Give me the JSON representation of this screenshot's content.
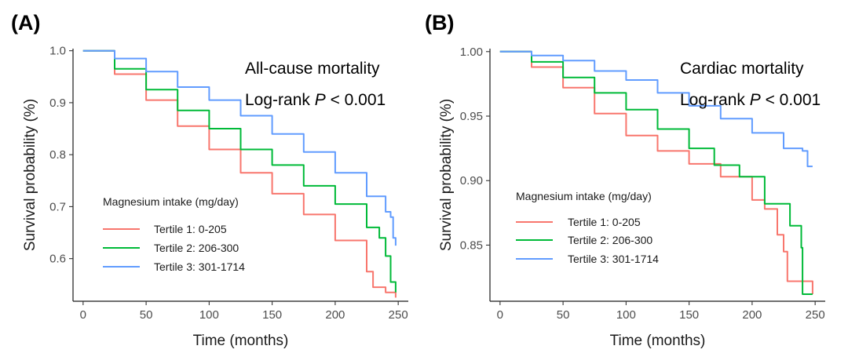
{
  "chart_data": [
    {
      "panel_label": "(A)",
      "type": "line",
      "title": "",
      "xlabel": "Time (months)",
      "ylabel": "Survival probability (%)",
      "xlim": [
        0,
        250
      ],
      "ylim": [
        0.52,
        1.0
      ],
      "xticks": [
        0,
        50,
        100,
        150,
        200,
        250
      ],
      "yticks": [
        "0.6",
        "0.7",
        "0.8",
        "0.9",
        "1.0"
      ],
      "annotation_line1": "All-cause mortality",
      "annotation_line2_prefix": "Log-rank ",
      "annotation_line2_p": "P",
      "annotation_line2_suffix": " < 0.001",
      "legend_title": "Magnesium intake (mg/day)",
      "grid": false,
      "series": [
        {
          "name": "Tertile 1: 0-205",
          "color": "#F8766D",
          "x": [
            0,
            25,
            50,
            75,
            100,
            125,
            150,
            175,
            200,
            225,
            230,
            240,
            248
          ],
          "y": [
            1.0,
            0.955,
            0.905,
            0.855,
            0.81,
            0.765,
            0.725,
            0.685,
            0.635,
            0.575,
            0.545,
            0.535,
            0.525
          ]
        },
        {
          "name": "Tertile 2:  206-300",
          "color": "#00BA38",
          "x": [
            0,
            25,
            50,
            75,
            100,
            125,
            150,
            175,
            200,
            225,
            235,
            240,
            244,
            248
          ],
          "y": [
            1.0,
            0.965,
            0.925,
            0.885,
            0.85,
            0.81,
            0.78,
            0.74,
            0.705,
            0.66,
            0.64,
            0.605,
            0.555,
            0.535
          ]
        },
        {
          "name": "Tertile 3:  301-1714",
          "color": "#619CFF",
          "x": [
            0,
            25,
            50,
            75,
            100,
            125,
            150,
            175,
            200,
            225,
            240,
            244,
            246,
            248
          ],
          "y": [
            1.0,
            0.985,
            0.96,
            0.93,
            0.905,
            0.875,
            0.84,
            0.805,
            0.765,
            0.72,
            0.69,
            0.68,
            0.64,
            0.625
          ]
        }
      ]
    },
    {
      "panel_label": "(B)",
      "type": "line",
      "title": "",
      "xlabel": "Time (months)",
      "ylabel": "Survival probability (%)",
      "xlim": [
        0,
        250
      ],
      "ylim": [
        0.81,
        1.0
      ],
      "xticks": [
        0,
        50,
        100,
        150,
        200,
        250
      ],
      "yticks": [
        "0.85",
        "0.90",
        "0.95",
        "1.00"
      ],
      "annotation_line1": "Cardiac mortality",
      "annotation_line2_prefix": "Log-rank ",
      "annotation_line2_p": "P",
      "annotation_line2_suffix": " < 0.001",
      "legend_title": "Magnesium intake (mg/day)",
      "grid": false,
      "series": [
        {
          "name": "Tertile 1: 0-205",
          "color": "#F8766D",
          "x": [
            0,
            25,
            50,
            75,
            100,
            125,
            150,
            175,
            200,
            210,
            220,
            225,
            228,
            240,
            248
          ],
          "y": [
            1.0,
            0.988,
            0.972,
            0.952,
            0.935,
            0.923,
            0.913,
            0.903,
            0.885,
            0.878,
            0.858,
            0.845,
            0.822,
            0.822,
            0.812
          ]
        },
        {
          "name": "Tertile 2:  206-300",
          "color": "#00BA38",
          "x": [
            0,
            25,
            50,
            75,
            100,
            125,
            150,
            170,
            190,
            210,
            230,
            239,
            240,
            248
          ],
          "y": [
            1.0,
            0.992,
            0.98,
            0.968,
            0.955,
            0.94,
            0.925,
            0.912,
            0.903,
            0.882,
            0.865,
            0.848,
            0.812,
            0.812
          ]
        },
        {
          "name": "Tertile 3:  301-1714",
          "color": "#619CFF",
          "x": [
            0,
            25,
            50,
            75,
            100,
            125,
            150,
            175,
            200,
            225,
            240,
            244,
            248
          ],
          "y": [
            1.0,
            0.997,
            0.993,
            0.985,
            0.978,
            0.968,
            0.958,
            0.948,
            0.937,
            0.925,
            0.923,
            0.911,
            0.911
          ]
        }
      ]
    }
  ]
}
